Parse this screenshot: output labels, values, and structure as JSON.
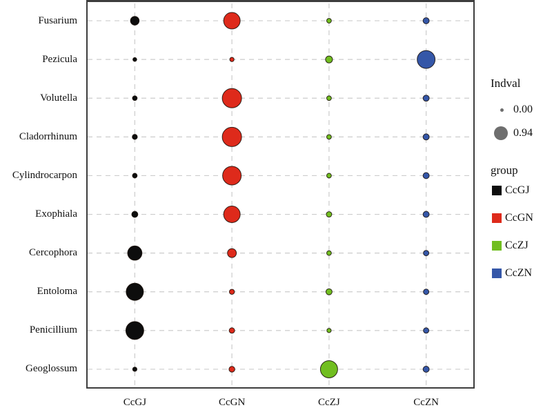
{
  "chart_data": {
    "type": "bubble-matrix",
    "x_categories": [
      "CcGJ",
      "CcGN",
      "CcZJ",
      "CcZN"
    ],
    "y_categories": [
      "Fusarium",
      "Pezicula",
      "Volutella",
      "Cladorrhinum",
      "Cylindrocarpon",
      "Exophiala",
      "Cercophora",
      "Entoloma",
      "Penicillium",
      "Geoglossum"
    ],
    "series": [
      {
        "name": "CcGJ",
        "color": "#0d0d0d",
        "values": [
          0.16,
          0.0,
          0.02,
          0.03,
          0.02,
          0.06,
          0.5,
          0.74,
          0.8,
          0.01
        ]
      },
      {
        "name": "CcGN",
        "color": "#de2a1b",
        "values": [
          0.68,
          0.01,
          0.94,
          0.94,
          0.87,
          0.68,
          0.17,
          0.03,
          0.04,
          0.05
        ]
      },
      {
        "name": "CcZJ",
        "color": "#71be20",
        "values": [
          0.02,
          0.09,
          0.02,
          0.02,
          0.02,
          0.04,
          0.02,
          0.06,
          0.01,
          0.74
        ]
      },
      {
        "name": "CcZN",
        "color": "#3557a8",
        "values": [
          0.06,
          0.8,
          0.06,
          0.06,
          0.06,
          0.06,
          0.04,
          0.04,
          0.04,
          0.06
        ]
      }
    ],
    "size_legend": {
      "title": "Indval",
      "min_label": "0.00",
      "max_label": "0.94",
      "min_value": 0.0,
      "max_value": 0.94,
      "dot_color": "#6e6e6e"
    },
    "group_legend": {
      "title": "group",
      "entries": [
        {
          "label": "CcGJ",
          "color": "#0d0d0d"
        },
        {
          "label": "CcGN",
          "color": "#de2a1b"
        },
        {
          "label": "CcZJ",
          "color": "#71be20"
        },
        {
          "label": "CcZN",
          "color": "#3557a8"
        }
      ]
    },
    "layout_hints": {
      "grid": "dashed horizontal and vertical gridlines at every category",
      "grid_color": "#cccccc",
      "panel_border_color": "#3d3d3d",
      "legend_position": "right"
    }
  }
}
